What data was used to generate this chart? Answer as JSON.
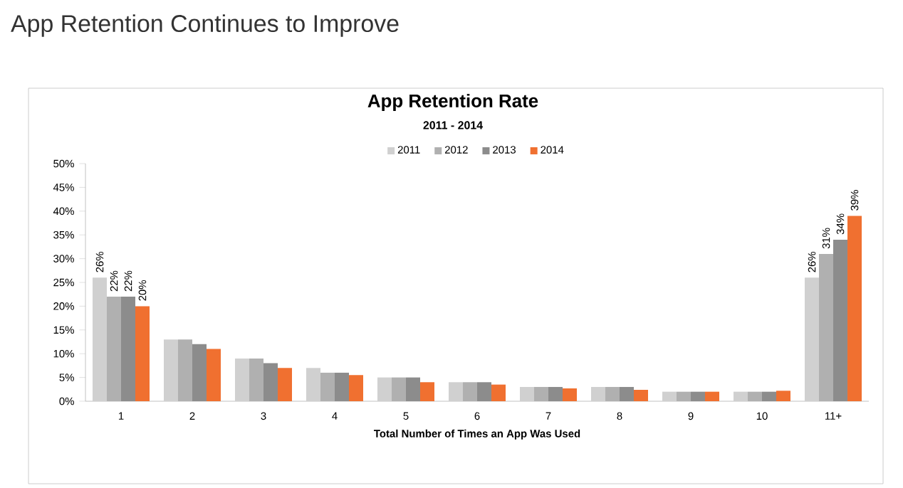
{
  "chart_data": {
    "type": "bar",
    "title": "App Retention Continues to Improve",
    "subtitle": "App Retention Rate",
    "annotations": [
      "2011 - 2014"
    ],
    "xlabel": "Total Number of Times an App Was Used",
    "categories": [
      "1",
      "2",
      "3",
      "4",
      "5",
      "6",
      "7",
      "8",
      "9",
      "10",
      "11+"
    ],
    "series": [
      {
        "name": "2011",
        "color": "#d0d0d0",
        "values": [
          26,
          13,
          9,
          7,
          5,
          4,
          3,
          3,
          2,
          2,
          26
        ],
        "value_labels": [
          "26%",
          null,
          null,
          null,
          null,
          null,
          null,
          null,
          null,
          null,
          "26%"
        ]
      },
      {
        "name": "2012",
        "color": "#b0b0b0",
        "values": [
          22,
          13,
          9,
          6,
          5,
          4,
          3,
          3,
          2,
          2,
          31
        ],
        "value_labels": [
          "22%",
          null,
          null,
          null,
          null,
          null,
          null,
          null,
          null,
          null,
          "31%"
        ]
      },
      {
        "name": "2013",
        "color": "#8c8c8c",
        "values": [
          22,
          12,
          8,
          6,
          5,
          4,
          3,
          3,
          2,
          2,
          34
        ],
        "value_labels": [
          "22%",
          null,
          null,
          null,
          null,
          null,
          null,
          null,
          null,
          null,
          "34%"
        ]
      },
      {
        "name": "2014",
        "color": "#f07030",
        "values": [
          20,
          11,
          7,
          5.5,
          4,
          3.5,
          2.7,
          2.4,
          2,
          2.2,
          39
        ],
        "value_labels": [
          "20%",
          null,
          null,
          null,
          null,
          null,
          null,
          null,
          null,
          null,
          "39%"
        ]
      }
    ],
    "ylim": [
      0,
      50
    ],
    "yticks": [
      {
        "value": 0,
        "label": "0%"
      },
      {
        "value": 5,
        "label": "5%"
      },
      {
        "value": 10,
        "label": "10%"
      },
      {
        "value": 15,
        "label": "15%"
      },
      {
        "value": 20,
        "label": "20%"
      },
      {
        "value": 25,
        "label": "25%"
      },
      {
        "value": 30,
        "label": "30%"
      },
      {
        "value": 35,
        "label": "35%"
      },
      {
        "value": 40,
        "label": "40%"
      },
      {
        "value": 45,
        "label": "45%"
      },
      {
        "value": 50,
        "label": "50%"
      }
    ],
    "legend": "top",
    "grid": false
  }
}
